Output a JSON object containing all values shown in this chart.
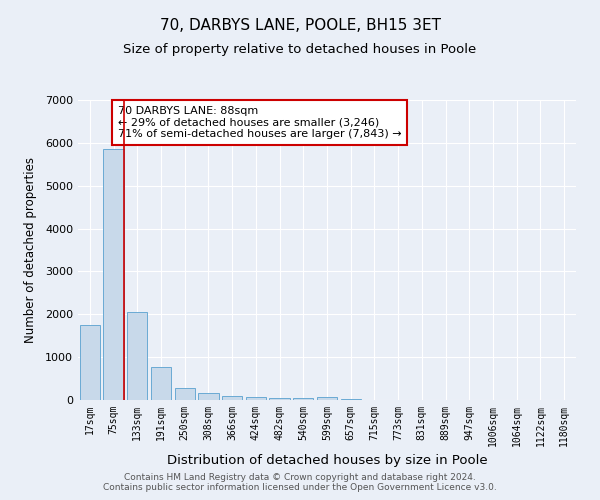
{
  "title1": "70, DARBYS LANE, POOLE, BH15 3ET",
  "title2": "Size of property relative to detached houses in Poole",
  "xlabel": "Distribution of detached houses by size in Poole",
  "ylabel": "Number of detached properties",
  "categories": [
    "17sqm",
    "75sqm",
    "133sqm",
    "191sqm",
    "250sqm",
    "308sqm",
    "366sqm",
    "424sqm",
    "482sqm",
    "540sqm",
    "599sqm",
    "657sqm",
    "715sqm",
    "773sqm",
    "831sqm",
    "889sqm",
    "947sqm",
    "1006sqm",
    "1064sqm",
    "1122sqm",
    "1180sqm"
  ],
  "values": [
    1750,
    5850,
    2060,
    760,
    290,
    170,
    100,
    70,
    50,
    40,
    70,
    30,
    5,
    0,
    0,
    0,
    0,
    0,
    0,
    0,
    0
  ],
  "bar_color": "#c8d9ea",
  "bar_edge_color": "#6aaad4",
  "annotation_text": "70 DARBYS LANE: 88sqm\n← 29% of detached houses are smaller (3,246)\n71% of semi-detached houses are larger (7,843) →",
  "annotation_box_color": "#ffffff",
  "annotation_box_edge": "#cc0000",
  "red_line_x": 1,
  "ylim": [
    0,
    7000
  ],
  "yticks": [
    0,
    1000,
    2000,
    3000,
    4000,
    5000,
    6000,
    7000
  ],
  "bg_color": "#eaeff7",
  "plot_bg_color": "#eaeff7",
  "grid_color": "#ffffff",
  "footer": "Contains HM Land Registry data © Crown copyright and database right 2024.\nContains public sector information licensed under the Open Government Licence v3.0.",
  "title1_fontsize": 11,
  "title2_fontsize": 9.5,
  "xlabel_fontsize": 9.5,
  "ylabel_fontsize": 8.5,
  "tick_fontsize": 7,
  "annotation_fontsize": 8,
  "footer_fontsize": 6.5
}
